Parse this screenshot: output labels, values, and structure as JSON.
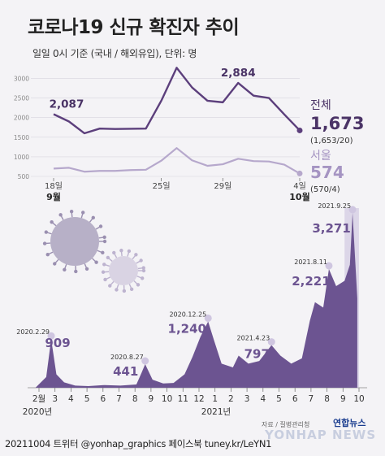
{
  "title": "코로나19 신규 확진자 추이",
  "subtitle": "일일 0시 기준 (국내 / 해외유입), 단위: 명",
  "credit": "20211004 트위터 @yonhap_graphics 페이스북 tuney.kr/LeYN1",
  "source": "자료 / 질병관리청",
  "logo": "연합뉴스",
  "watermark": "YONHAP NEWS",
  "colors": {
    "total": "#5c3f7c",
    "seoul": "#b6a8cc",
    "area": "#6c5491",
    "highlight": "#c8bedd",
    "background": "#f4f3f6"
  },
  "chart_data": [
    {
      "type": "line",
      "title": "",
      "yticks": [
        500,
        1000,
        1500,
        2000,
        2500,
        3000
      ],
      "ylim": [
        500,
        3300
      ],
      "x_tick_labels": [
        "18일",
        "25일",
        "29일",
        "4일"
      ],
      "x_month_labels": [
        "9월",
        "10월"
      ],
      "series": [
        {
          "name": "전체",
          "color": "#5c3f7c",
          "values": [
            2087,
            1900,
            1600,
            1720,
            1710,
            1715,
            1720,
            2430,
            3271,
            2770,
            2430,
            2390,
            2884,
            2560,
            2500,
            2080,
            1673
          ],
          "annotations": [
            {
              "index": 0,
              "label": "2,087"
            },
            {
              "index": 8,
              "label": "3,271"
            },
            {
              "index": 12,
              "label": "2,884"
            }
          ],
          "end_value": "1,673",
          "end_detail": "(1,653/20)"
        },
        {
          "name": "서울",
          "color": "#b6a8cc",
          "values": [
            700,
            720,
            620,
            640,
            640,
            660,
            670,
            900,
            1222,
            910,
            770,
            810,
            950,
            890,
            880,
            800,
            574
          ],
          "end_value": "574",
          "end_detail": "(570/4)"
        }
      ]
    },
    {
      "type": "area",
      "title": "",
      "x_tick_labels": [
        "2월",
        "3",
        "4",
        "5",
        "6",
        "7",
        "8",
        "9",
        "10",
        "11",
        "12",
        "1",
        "2",
        "3",
        "4",
        "5",
        "6",
        "7",
        "8",
        "9",
        "10"
      ],
      "year_labels": [
        "2020년",
        "2021년"
      ],
      "ylim": [
        0,
        3300
      ],
      "x": [
        "2020.2.1",
        "2020.2.20",
        "2020.2.29",
        "2020.3.10",
        "2020.3.25",
        "2020.4.15",
        "2020.5.10",
        "2020.6.10",
        "2020.7.10",
        "2020.8.10",
        "2020.8.20",
        "2020.8.27",
        "2020.9.10",
        "2020.9.30",
        "2020.10.20",
        "2020.11.10",
        "2020.11.25",
        "2020.12.10",
        "2020.12.25",
        "2021.1.5",
        "2021.1.20",
        "2021.2.10",
        "2021.2.20",
        "2021.3.10",
        "2021.3.31",
        "2021.4.23",
        "2021.5.10",
        "2021.5.31",
        "2021.6.20",
        "2021.7.5",
        "2021.7.15",
        "2021.7.31",
        "2021.8.11",
        "2021.8.25",
        "2021.9.10",
        "2021.9.20",
        "2021.9.25",
        "2021.10.4"
      ],
      "values": [
        5,
        200,
        909,
        250,
        100,
        40,
        30,
        50,
        40,
        60,
        280,
        441,
        150,
        80,
        90,
        250,
        580,
        950,
        1240,
        900,
        450,
        380,
        600,
        450,
        500,
        797,
        600,
        450,
        550,
        1250,
        1600,
        1500,
        2221,
        1900,
        2000,
        2300,
        3271,
        1673
      ],
      "annotations": [
        {
          "date": "2020.2.29",
          "label": "909"
        },
        {
          "date": "2020.8.27",
          "label": "441"
        },
        {
          "date": "2020.12.25",
          "label": "1,240"
        },
        {
          "date": "2021.4.23",
          "label": "797"
        },
        {
          "date": "2021.8.11",
          "label": "2,221"
        },
        {
          "date": "2021.9.25",
          "label": "3,271"
        }
      ]
    }
  ]
}
